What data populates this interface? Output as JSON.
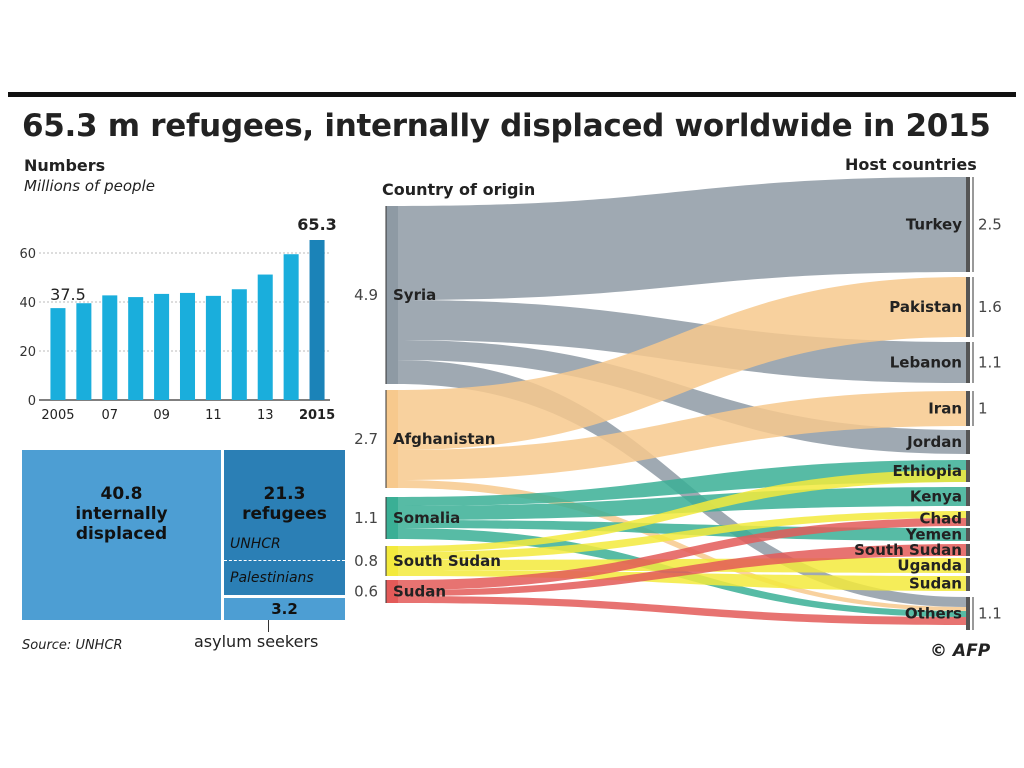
{
  "title": "65.3 m refugees, internally displaced worldwide in 2015",
  "bar_section": {
    "heading": "Numbers",
    "unit": "Millions of people"
  },
  "flow_section": {
    "origin_heading": "Country of origin",
    "host_heading": "Host countries"
  },
  "treemap": {
    "internally_displaced": {
      "value": "40.8",
      "label_1": "internally",
      "label_2": "displaced"
    },
    "refugees": {
      "value": "21.3",
      "label": "refugees",
      "sub_1": "UNHCR",
      "sub_2": "Palestinians"
    },
    "asylum_seekers": {
      "value": "3.2",
      "label": "asylum seekers"
    }
  },
  "source": "Source: UNHCR",
  "credit": "© AFP",
  "colors": {
    "bar": "#1aaedc",
    "bar_last": "#1b83b8",
    "syria": "#8e9aa4",
    "afghanistan": "#f7c98d",
    "somalia": "#3aaf95",
    "south_sudan": "#f3ea3c",
    "sudan": "#e35a58",
    "treemap_light": "#4d9ed3",
    "treemap_dark": "#2b7fb5"
  },
  "chart_data": [
    {
      "type": "bar",
      "title": "Numbers",
      "ylabel": "Millions of people",
      "categories": [
        "2005",
        "2006",
        "2007",
        "2008",
        "2009",
        "2010",
        "2011",
        "2012",
        "2013",
        "2014",
        "2015"
      ],
      "x_tick_labels": [
        "2005",
        "",
        "07",
        "",
        "09",
        "",
        "11",
        "",
        "13",
        "",
        "2015"
      ],
      "values": [
        37.5,
        39.5,
        42.7,
        42,
        43.3,
        43.7,
        42.5,
        45.2,
        51.2,
        59.5,
        65.3
      ],
      "data_labels": {
        "first": "37.5",
        "last": "65.3"
      },
      "yticks": [
        "0",
        "20",
        "40",
        "60"
      ],
      "ylim": [
        0,
        65.3
      ]
    },
    {
      "type": "sankey",
      "origins": [
        {
          "name": "Syria",
          "value": "4.9"
        },
        {
          "name": "Afghanistan",
          "value": "2.7"
        },
        {
          "name": "Somalia",
          "value": "1.1"
        },
        {
          "name": "South Sudan",
          "value": "0.8"
        },
        {
          "name": "Sudan",
          "value": "0.6"
        }
      ],
      "hosts": [
        {
          "name": "Turkey",
          "value": "2.5"
        },
        {
          "name": "Pakistan",
          "value": "1.6"
        },
        {
          "name": "Lebanon",
          "value": "1.1"
        },
        {
          "name": "Iran",
          "value": "1"
        },
        {
          "name": "Jordan",
          "value": ""
        },
        {
          "name": "Ethiopia",
          "value": ""
        },
        {
          "name": "Kenya",
          "value": ""
        },
        {
          "name": "Chad",
          "value": ""
        },
        {
          "name": "Yemen",
          "value": ""
        },
        {
          "name": "South Sudan",
          "value": ""
        },
        {
          "name": "Uganda",
          "value": ""
        },
        {
          "name": "Sudan",
          "value": ""
        },
        {
          "name": "Others",
          "value": "1.1"
        }
      ]
    }
  ]
}
